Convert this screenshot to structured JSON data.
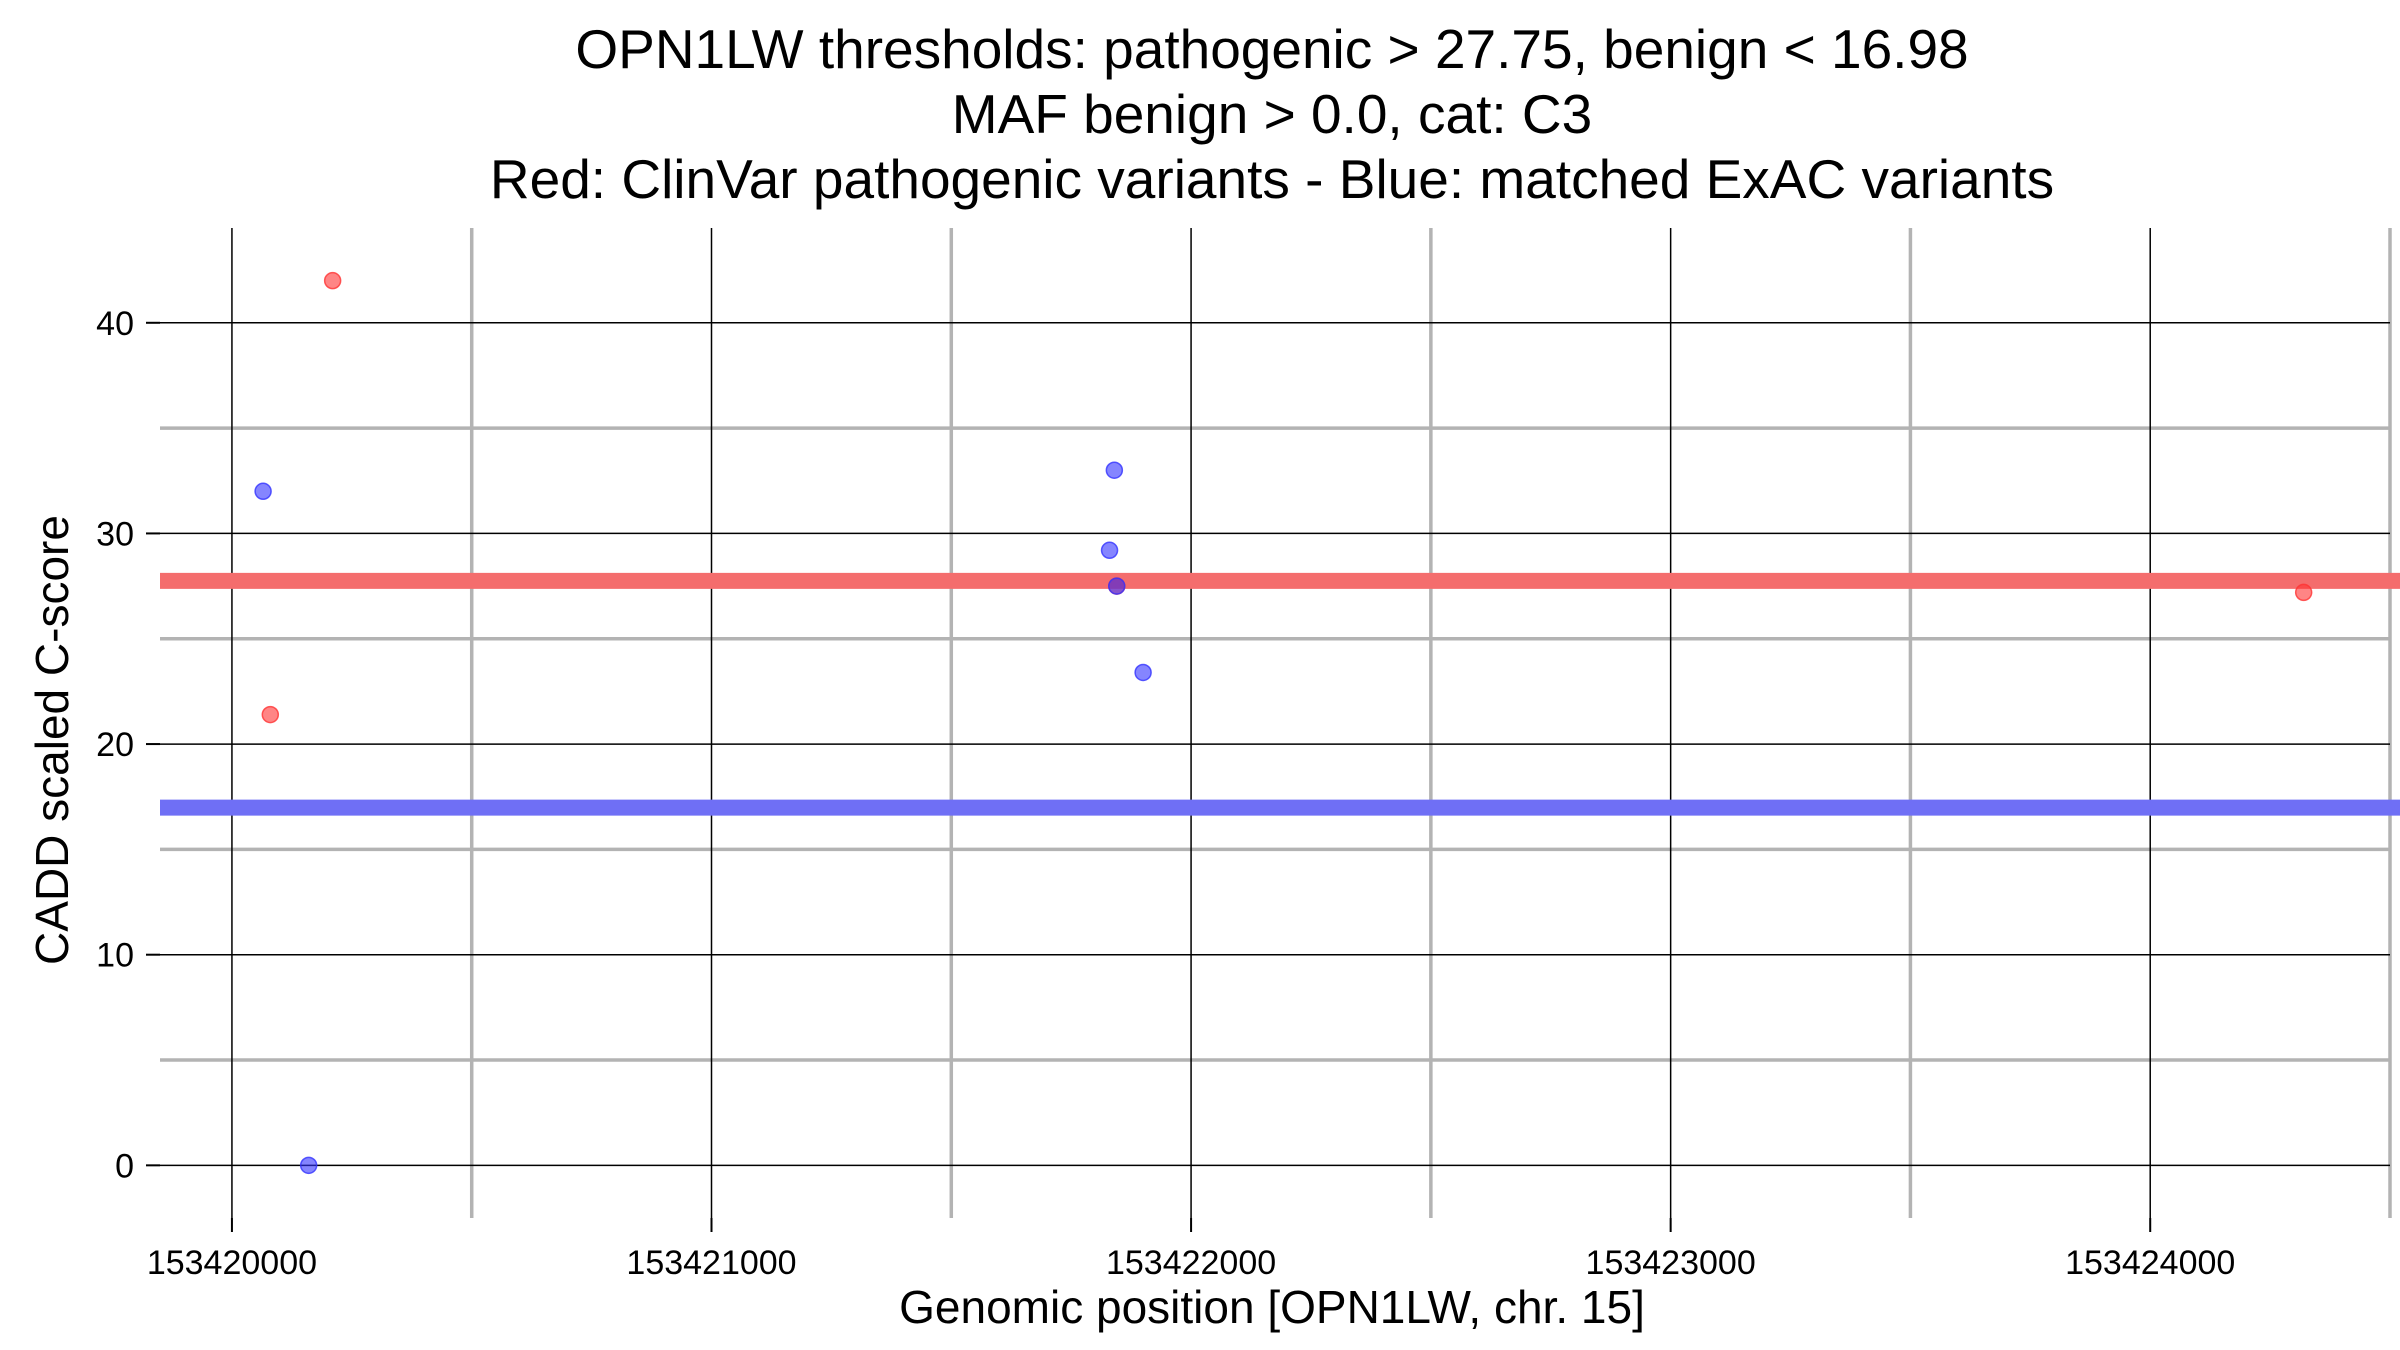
{
  "chart_data": {
    "type": "scatter",
    "title_lines": [
      "OPN1LW thresholds: pathogenic > 27.75, benign < 16.98",
      "MAF benign > 0.0, cat: C3",
      "Red: ClinVar pathogenic variants - Blue: matched ExAC variants"
    ],
    "xlabel": "Genomic position [OPN1LW, chr. 15]",
    "ylabel": "CADD scaled C-score",
    "xlim": [
      153419850,
      153424500
    ],
    "ylim": [
      -2.5,
      44.5
    ],
    "x_major_ticks": [
      153420000,
      153421000,
      153422000,
      153423000,
      153424000
    ],
    "x_minor_ticks": [
      153420500,
      153421500,
      153422500,
      153423500,
      153424500
    ],
    "y_major_ticks": [
      0,
      10,
      20,
      30,
      40
    ],
    "y_minor_ticks": [
      5,
      15,
      25,
      35
    ],
    "x_tick_labels": [
      "153420000",
      "153421000",
      "153422000",
      "153423000",
      "153424000"
    ],
    "y_tick_labels": [
      "0",
      "10",
      "20",
      "30",
      "40"
    ],
    "grid": true,
    "thresholds": [
      {
        "value": 27.75,
        "color": "#f46d6d"
      },
      {
        "value": 16.98,
        "color": "#6f6ff5"
      }
    ],
    "series": [
      {
        "color": "#ff3333",
        "points": [
          {
            "x": 153420210,
            "y": 42.0
          },
          {
            "x": 153420080,
            "y": 21.4
          },
          {
            "x": 153421845,
            "y": 27.5
          },
          {
            "x": 153424320,
            "y": 27.2
          }
        ]
      },
      {
        "color": "#3333ff",
        "points": [
          {
            "x": 153420065,
            "y": 32.0
          },
          {
            "x": 153420160,
            "y": 0.0
          },
          {
            "x": 153421840,
            "y": 33.0
          },
          {
            "x": 153421830,
            "y": 29.2
          },
          {
            "x": 153421845,
            "y": 27.5
          },
          {
            "x": 153421900,
            "y": 23.4
          }
        ]
      }
    ]
  }
}
